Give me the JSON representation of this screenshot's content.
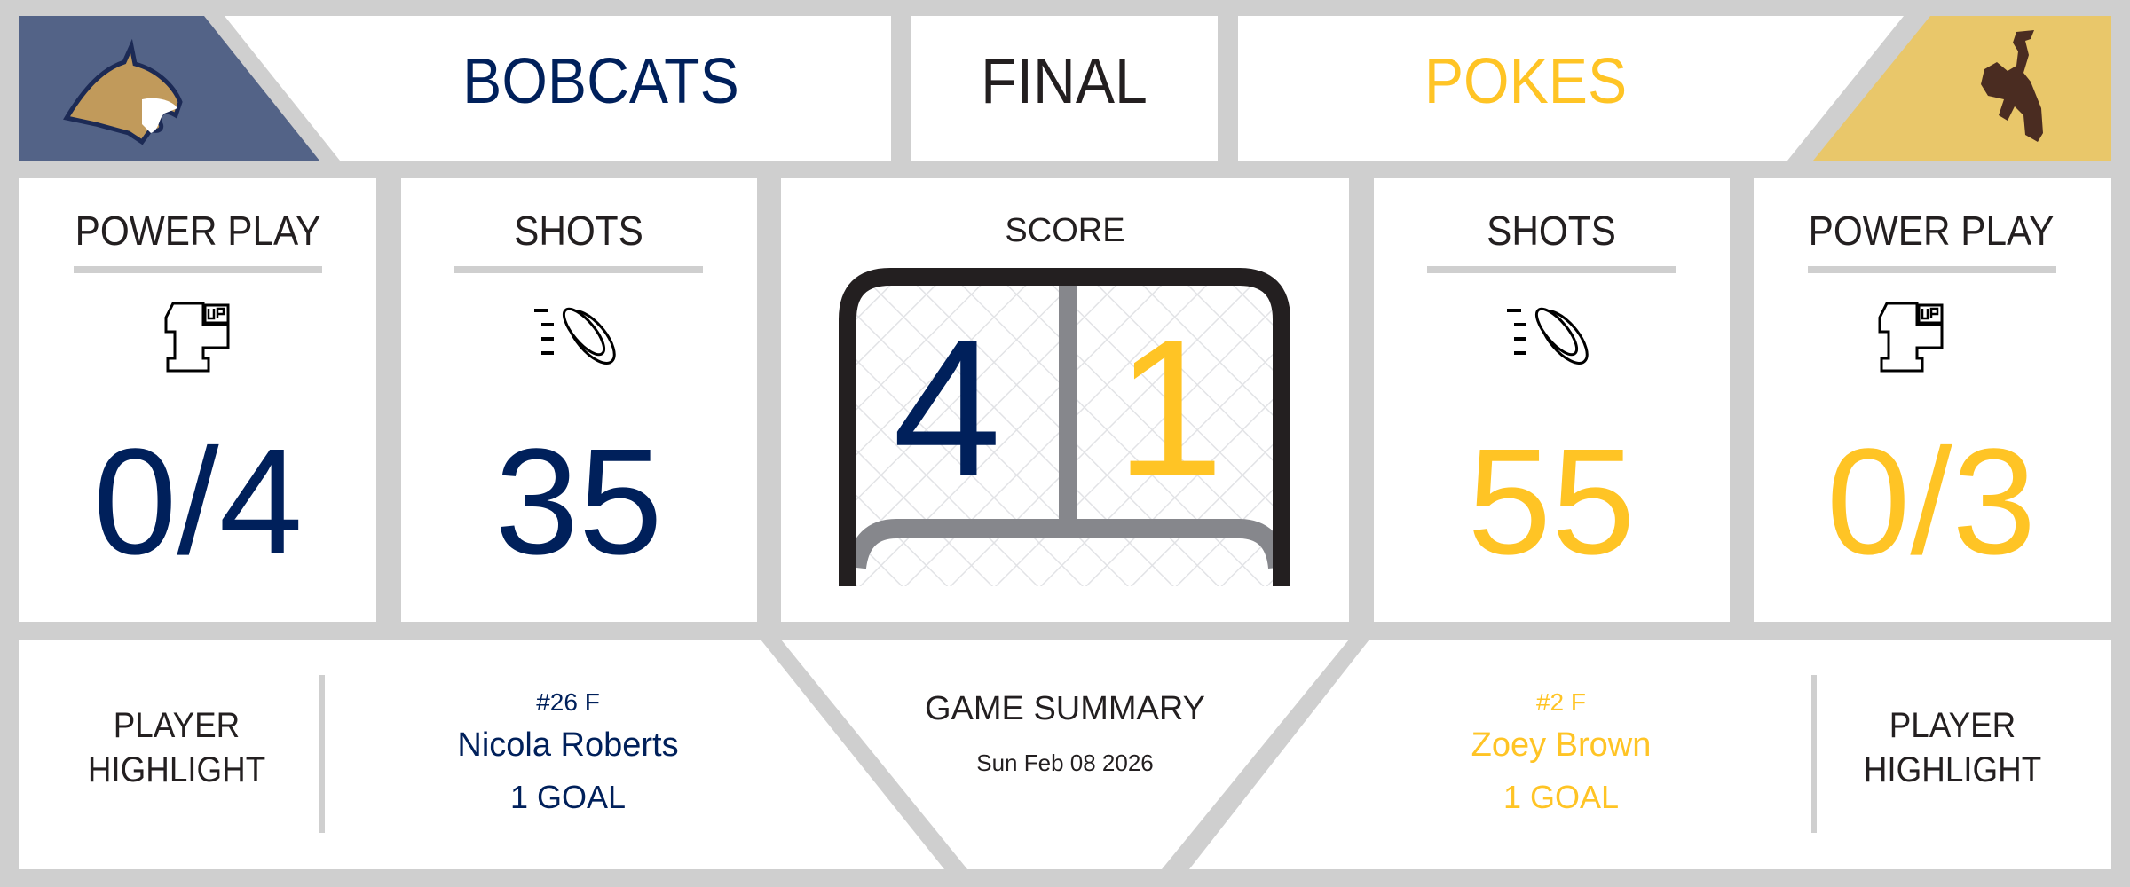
{
  "colors": {
    "home": "#00205b",
    "away": "#ffc425",
    "home_logo_bg": "#536387",
    "away_logo_bg": "#e9c76a",
    "background": "#cfcfcf"
  },
  "header": {
    "home_team": "BOBCATS",
    "status": "FINAL",
    "away_team": "POKES",
    "home_logo": "bobcat-logo",
    "away_logo": "bucking-horse-logo"
  },
  "stats": {
    "home_power_play": {
      "label": "POWER PLAY",
      "icon": "1up-icon",
      "value": "0/4"
    },
    "home_shots": {
      "label": "SHOTS",
      "icon": "hockey-puck-icon",
      "value": "35"
    },
    "score": {
      "label": "SCORE",
      "icon": "hockey-goal-icon",
      "home": "4",
      "away": "1"
    },
    "away_shots": {
      "label": "SHOTS",
      "icon": "hockey-puck-icon",
      "value": "55"
    },
    "away_power_play": {
      "label": "POWER PLAY",
      "icon": "1up-icon",
      "value": "0/3"
    }
  },
  "footer": {
    "home_highlight": {
      "label_line1": "PLAYER",
      "label_line2": "HIGHLIGHT",
      "number_pos": "#26 F",
      "name": "Nicola Roberts",
      "stat": "1 GOAL"
    },
    "summary": {
      "title": "GAME SUMMARY",
      "date": "Sun Feb 08 2026"
    },
    "away_highlight": {
      "label_line1": "PLAYER",
      "label_line2": "HIGHLIGHT",
      "number_pos": "#2 F",
      "name": "Zoey Brown",
      "stat": "1 GOAL"
    }
  }
}
